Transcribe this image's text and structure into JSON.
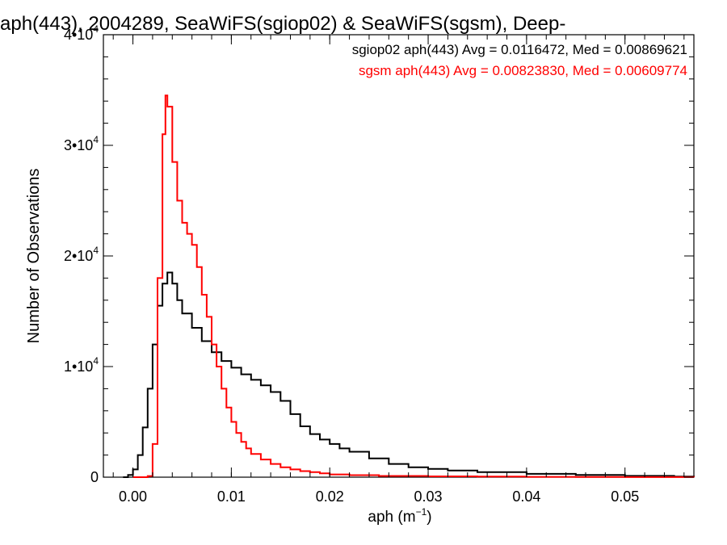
{
  "chart_data": {
    "type": "line",
    "title": "aph(443), 2004289, SeaWiFS(sgiop02) & SeaWiFS(sgsm), Deep-",
    "xlabel_base": "aph (m",
    "xlabel_sup": "−1",
    "xlabel_tail": ")",
    "ylabel": "Number of Observations",
    "xlim": [
      -0.003,
      0.057
    ],
    "ylim": [
      0,
      40000
    ],
    "x_ticks": [
      {
        "value": 0.0,
        "label": "0.00"
      },
      {
        "value": 0.01,
        "label": "0.01"
      },
      {
        "value": 0.02,
        "label": "0.02"
      },
      {
        "value": 0.03,
        "label": "0.03"
      },
      {
        "value": 0.04,
        "label": "0.04"
      },
      {
        "value": 0.05,
        "label": "0.05"
      }
    ],
    "y_ticks": [
      {
        "value": 0,
        "base": "0",
        "sup": ""
      },
      {
        "value": 10000,
        "base": "1•10",
        "sup": "4"
      },
      {
        "value": 20000,
        "base": "2•10",
        "sup": "4"
      },
      {
        "value": 30000,
        "base": "3•10",
        "sup": "4"
      },
      {
        "value": 40000,
        "base": "4•10",
        "sup": "4"
      }
    ],
    "grid": false,
    "legend_position": "top-right",
    "series": [
      {
        "name": "sgiop02 aph(443) Avg = 0.0116472, Med = 0.00869621",
        "color": "#000000",
        "x": [
          -0.001,
          -0.0005,
          0.0,
          0.0005,
          0.001,
          0.0015,
          0.002,
          0.0025,
          0.003,
          0.0035,
          0.004,
          0.0045,
          0.005,
          0.006,
          0.007,
          0.008,
          0.009,
          0.01,
          0.011,
          0.012,
          0.013,
          0.014,
          0.015,
          0.016,
          0.017,
          0.018,
          0.019,
          0.02,
          0.021,
          0.022,
          0.024,
          0.026,
          0.028,
          0.03,
          0.032,
          0.035,
          0.04,
          0.045,
          0.05,
          0.055,
          0.057
        ],
        "values": [
          0,
          200,
          700,
          2000,
          4500,
          8000,
          12000,
          15500,
          17500,
          18500,
          17500,
          16000,
          14800,
          13500,
          12300,
          11300,
          10500,
          9900,
          9300,
          8800,
          8300,
          7700,
          6900,
          5700,
          4600,
          3900,
          3400,
          3000,
          2600,
          2300,
          1700,
          1200,
          900,
          750,
          600,
          450,
          300,
          200,
          120,
          60,
          40
        ]
      },
      {
        "name": "sgsm aph(443) Avg = 0.00823830, Med = 0.00609774",
        "color": "#ff0000",
        "x": [
          0.0,
          0.0005,
          0.001,
          0.0015,
          0.002,
          0.0025,
          0.003,
          0.0033,
          0.0035,
          0.004,
          0.0045,
          0.005,
          0.0055,
          0.006,
          0.0065,
          0.007,
          0.0075,
          0.008,
          0.0085,
          0.009,
          0.0095,
          0.01,
          0.0105,
          0.011,
          0.0115,
          0.012,
          0.013,
          0.014,
          0.015,
          0.016,
          0.017,
          0.018,
          0.019,
          0.02,
          0.022,
          0.025,
          0.03,
          0.035,
          0.04,
          0.045,
          0.05,
          0.057
        ],
        "values": [
          0,
          0,
          0,
          100,
          3000,
          18000,
          31000,
          34500,
          33500,
          28500,
          25000,
          23000,
          22000,
          21000,
          19000,
          16500,
          14500,
          12000,
          10000,
          8000,
          6300,
          5000,
          4000,
          3200,
          2600,
          2100,
          1600,
          1200,
          900,
          700,
          550,
          450,
          350,
          250,
          180,
          110,
          70,
          50,
          30,
          20,
          10,
          0
        ]
      }
    ]
  }
}
